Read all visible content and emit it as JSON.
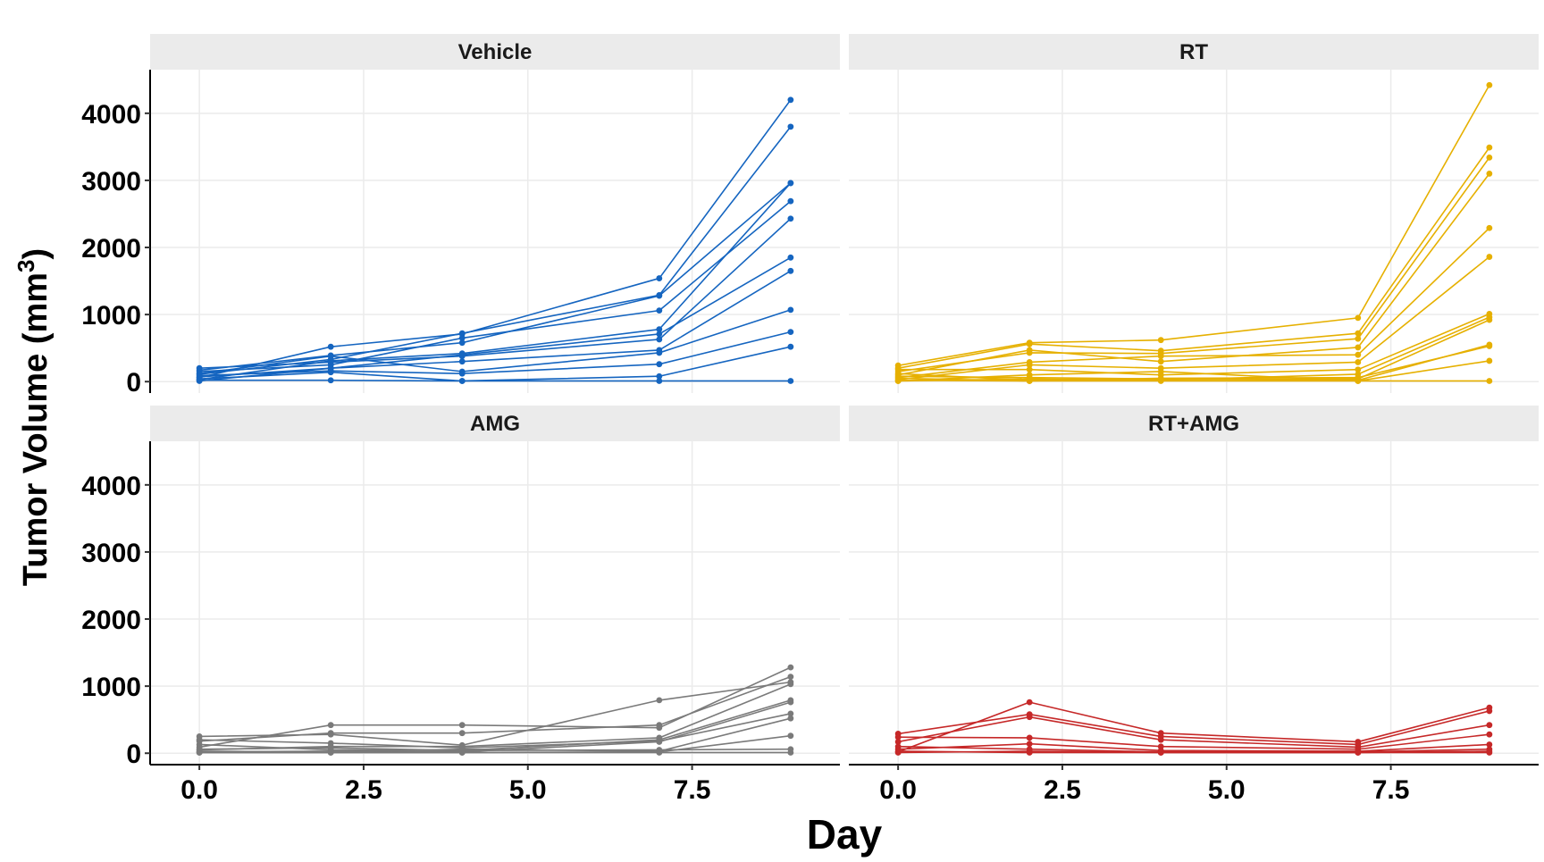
{
  "chart_data": {
    "type": "line",
    "layout": "facet-grid-2x2",
    "xlabel": "Day",
    "ylabel": {
      "main": "Tumor Volume (mm",
      "sup": "3",
      "close": ")"
    },
    "x": [
      0,
      2,
      4,
      7,
      9
    ],
    "xlim": [
      -0.75,
      9.75
    ],
    "ylim": [
      -170,
      4650
    ],
    "x_ticks": [
      0,
      2.5,
      5,
      7.5
    ],
    "x_tick_labels": [
      "0.0",
      "2.5",
      "5.0",
      "7.5"
    ],
    "y_ticks": [
      0,
      1000,
      2000,
      3000,
      4000
    ],
    "y_tick_labels": [
      "0",
      "1000",
      "2000",
      "3000",
      "4000"
    ],
    "grid": true,
    "panels": [
      {
        "label": "Vehicle",
        "color": "#1565C0",
        "series": [
          [
            60,
            520,
            710,
            1540,
            4200
          ],
          [
            110,
            330,
            720,
            1290,
            3800
          ],
          [
            170,
            390,
            580,
            1280,
            2960
          ],
          [
            30,
            310,
            420,
            780,
            2960
          ],
          [
            150,
            250,
            650,
            1060,
            2690
          ],
          [
            200,
            290,
            380,
            630,
            2430
          ],
          [
            70,
            200,
            400,
            710,
            1850
          ],
          [
            10,
            200,
            300,
            470,
            1650
          ],
          [
            120,
            380,
            150,
            430,
            1070
          ],
          [
            90,
            160,
            120,
            260,
            740
          ],
          [
            20,
            20,
            10,
            80,
            520
          ],
          [
            40,
            140,
            10,
            10,
            10
          ]
        ]
      },
      {
        "label": "RT",
        "color": "#E6B000",
        "series": [
          [
            240,
            580,
            620,
            950,
            4420
          ],
          [
            200,
            560,
            460,
            720,
            3490
          ],
          [
            150,
            430,
            420,
            640,
            3340
          ],
          [
            100,
            470,
            300,
            510,
            3100
          ],
          [
            60,
            290,
            380,
            400,
            2290
          ],
          [
            30,
            250,
            200,
            290,
            1860
          ],
          [
            180,
            180,
            100,
            180,
            1010
          ],
          [
            10,
            40,
            20,
            110,
            960
          ],
          [
            120,
            20,
            30,
            40,
            920
          ],
          [
            80,
            60,
            40,
            20,
            550
          ],
          [
            20,
            10,
            50,
            60,
            530
          ],
          [
            50,
            10,
            10,
            10,
            310
          ],
          [
            10,
            100,
            150,
            10,
            10
          ]
        ]
      },
      {
        "label": "AMG",
        "color": "#7a7a7a",
        "series": [
          [
            90,
            420,
            420,
            380,
            1280
          ],
          [
            180,
            300,
            300,
            420,
            1140
          ],
          [
            250,
            280,
            120,
            790,
            1060
          ],
          [
            50,
            100,
            100,
            230,
            1030
          ],
          [
            130,
            50,
            40,
            200,
            790
          ],
          [
            20,
            30,
            20,
            170,
            760
          ],
          [
            200,
            150,
            80,
            180,
            590
          ],
          [
            30,
            20,
            60,
            30,
            520
          ],
          [
            10,
            10,
            10,
            20,
            260
          ],
          [
            60,
            80,
            40,
            50,
            60
          ],
          [
            10,
            10,
            10,
            10,
            10
          ]
        ]
      },
      {
        "label": "RT+AMG",
        "color": "#C62828",
        "series": [
          [
            20,
            760,
            300,
            170,
            680
          ],
          [
            290,
            580,
            250,
            130,
            630
          ],
          [
            170,
            540,
            200,
            90,
            420
          ],
          [
            240,
            230,
            100,
            60,
            280
          ],
          [
            60,
            140,
            40,
            30,
            130
          ],
          [
            100,
            60,
            20,
            20,
            60
          ],
          [
            10,
            30,
            10,
            10,
            30
          ],
          [
            30,
            10,
            10,
            10,
            10
          ]
        ]
      }
    ]
  }
}
